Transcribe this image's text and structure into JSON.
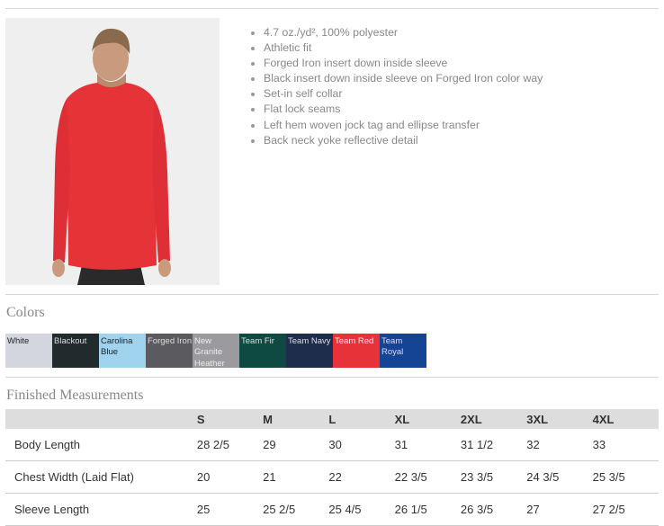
{
  "features": [
    "4.7 oz./yd², 100% polyester",
    "Athletic fit",
    "Forged Iron insert down inside sleeve",
    "Black insert down inside sleeve on Forged Iron color way",
    "Set-in self collar",
    "Flat lock seams",
    "Left hem woven jock tag and ellipse transfer",
    "Back neck yoke reflective detail"
  ],
  "colors_title": "Colors",
  "colors": [
    {
      "name": "White",
      "hex": "#d4d6df",
      "text": "#222"
    },
    {
      "name": "Blackout",
      "hex": "#212a2d",
      "text": "#ddd"
    },
    {
      "name": "Carolina Blue",
      "hex": "#9fd3ee",
      "text": "#222"
    },
    {
      "name": "Forged Iron",
      "hex": "#5b5a5e",
      "text": "#ddd"
    },
    {
      "name": "New Granite Heather",
      "hex": "#9b9a9e",
      "text": "#eee"
    },
    {
      "name": "Team Fir",
      "hex": "#0f4a42",
      "text": "#ddd"
    },
    {
      "name": "Team Navy",
      "hex": "#1f2d4d",
      "text": "#ddd"
    },
    {
      "name": "Team Red",
      "hex": "#e8323a",
      "text": "#eee"
    },
    {
      "name": "Team Royal",
      "hex": "#164495",
      "text": "#ddd"
    }
  ],
  "measurements_title": "Finished Measurements",
  "table": {
    "headers": [
      "",
      "S",
      "M",
      "L",
      "XL",
      "2XL",
      "3XL",
      "4XL"
    ],
    "rows": [
      [
        "Body Length",
        "28 2/5",
        "29",
        "30",
        "31",
        "31 1/2",
        "32",
        "33"
      ],
      [
        "Chest Width (Laid Flat)",
        "20",
        "21",
        "22",
        "22 3/5",
        "23 3/5",
        "24 3/5",
        "25 3/5"
      ],
      [
        "Sleeve Length",
        "25",
        "25 2/5",
        "25 4/5",
        "26 1/5",
        "26 3/5",
        "27",
        "27 2/5"
      ]
    ]
  }
}
